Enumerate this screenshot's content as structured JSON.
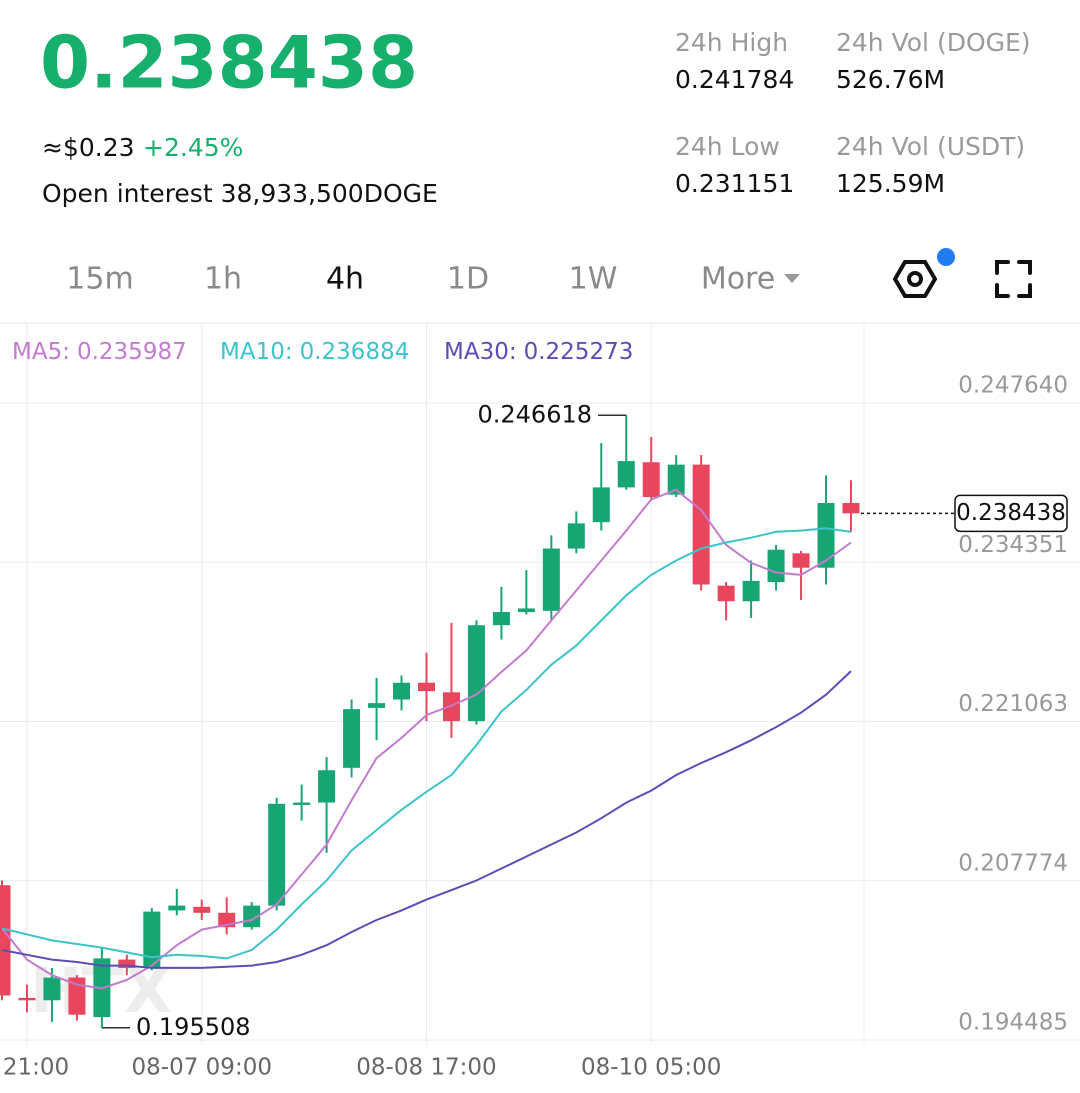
{
  "header": {
    "price": "0.238438",
    "usd": "≈$0.23",
    "change": "+2.45%",
    "open_interest": "Open interest 38,933,500DOGE",
    "stats": [
      {
        "label": "24h High",
        "value": "0.241784"
      },
      {
        "label": "24h Vol (DOGE)",
        "value": "526.76M"
      },
      {
        "label": "24h Low",
        "value": "0.231151"
      },
      {
        "label": "24h Vol (USDT)",
        "value": "125.59M"
      }
    ]
  },
  "tabs": {
    "items": [
      "15m",
      "1h",
      "4h",
      "1D",
      "1W",
      "More"
    ],
    "selected": 2
  },
  "chart_data": {
    "type": "candlestick",
    "watermark": "HTX",
    "categories": [
      null,
      "21:00",
      null,
      null,
      null,
      null,
      null,
      null,
      "08-07 09:00",
      null,
      null,
      null,
      null,
      null,
      null,
      null,
      null,
      "08-08 17:00",
      null,
      null,
      null,
      null,
      null,
      null,
      null,
      null,
      "08-10 05:00",
      null,
      null,
      null,
      null,
      null,
      null,
      null,
      null
    ],
    "open": [
      0.2074,
      0.198,
      0.1978,
      0.1997,
      0.1964,
      0.2012,
      0.2005,
      0.2053,
      0.2056,
      0.2051,
      0.2039,
      0.2057,
      0.2141,
      0.2143,
      0.2172,
      0.2222,
      0.2229,
      0.2243,
      0.2235,
      0.2211,
      0.2291,
      0.2302,
      0.2303,
      0.2355,
      0.2377,
      0.2406,
      0.2427,
      0.24,
      0.2425,
      0.2324,
      0.2311,
      0.2327,
      0.2351,
      0.2339,
      0.2393
    ],
    "high": [
      0.2078,
      0.1991,
      0.2005,
      0.1999,
      0.2022,
      0.2016,
      0.2055,
      0.2071,
      0.2062,
      0.2064,
      0.206,
      0.2147,
      0.2158,
      0.2181,
      0.2229,
      0.2247,
      0.2249,
      0.2268,
      0.2293,
      0.2295,
      0.2323,
      0.2337,
      0.2366,
      0.2386,
      0.2443,
      0.246618,
      0.2448,
      0.2433,
      0.2433,
      0.2327,
      0.2345,
      0.2358,
      0.2353,
      0.2416,
      0.2412
    ],
    "low": [
      0.1978,
      0.1968,
      0.196,
      0.1961,
      0.195508,
      0.1999,
      0.2003,
      0.2049,
      0.2045,
      0.2033,
      0.2037,
      0.2053,
      0.2128,
      0.2101,
      0.2164,
      0.2195,
      0.222,
      0.2211,
      0.2197,
      0.2208,
      0.2279,
      0.23,
      0.2295,
      0.2351,
      0.237,
      0.2404,
      0.2395,
      0.2398,
      0.232,
      0.2295,
      0.2297,
      0.232,
      0.2312,
      0.2325,
      0.2369
    ],
    "close": [
      0.1982,
      0.1978,
      0.1997,
      0.1966,
      0.2013,
      0.2005,
      0.2052,
      0.2057,
      0.2051,
      0.2039,
      0.2057,
      0.2142,
      0.2143,
      0.217,
      0.2221,
      0.2226,
      0.2243,
      0.2236,
      0.2211,
      0.2291,
      0.2302,
      0.2305,
      0.2355,
      0.2376,
      0.2406,
      0.2428,
      0.2398,
      0.2425,
      0.2325,
      0.2311,
      0.2328,
      0.2354,
      0.2339,
      0.2393,
      0.238438
    ],
    "up_color": "#17a673",
    "down_color": "#e9465d",
    "series": [
      {
        "name": "MA5:",
        "latest": 0.235987,
        "color": "#c27bcf",
        "values": [
          0.2038,
          0.2012,
          0.1999,
          0.1991,
          0.1988,
          0.1995,
          0.2007,
          0.2024,
          0.2037,
          0.2041,
          0.2045,
          0.2058,
          0.2083,
          0.2108,
          0.2145,
          0.218,
          0.2197,
          0.2216,
          0.2224,
          0.2233,
          0.2252,
          0.227,
          0.2295,
          0.232,
          0.2345,
          0.237,
          0.2396,
          0.2404,
          0.2387,
          0.2358,
          0.2343,
          0.2335,
          0.2333,
          0.2345,
          0.236
        ]
      },
      {
        "name": "MA10:",
        "latest": 0.236884,
        "color": "#3cc3cb",
        "values": [
          0.2038,
          0.2033,
          0.2028,
          0.2025,
          0.2022,
          0.2018,
          0.2014,
          0.2016,
          0.2015,
          0.2013,
          0.202,
          0.2037,
          0.2058,
          0.2078,
          0.2103,
          0.212,
          0.2137,
          0.2152,
          0.2166,
          0.2191,
          0.2219,
          0.2237,
          0.2258,
          0.2274,
          0.2295,
          0.2316,
          0.2333,
          0.2345,
          0.2355,
          0.236,
          0.2364,
          0.2369,
          0.237,
          0.2372,
          0.236884
        ]
      },
      {
        "name": "MA30:",
        "latest": 0.225273,
        "color": "#5b4db8",
        "values": [
          0.202,
          0.2016,
          0.2012,
          0.201,
          0.2007,
          0.2007,
          0.2005,
          0.2005,
          0.2005,
          0.2006,
          0.2007,
          0.201,
          0.2016,
          0.2024,
          0.2035,
          0.2045,
          0.2053,
          0.2062,
          0.207,
          0.2078,
          0.2088,
          0.2098,
          0.2108,
          0.2118,
          0.213,
          0.2143,
          0.2153,
          0.2166,
          0.2176,
          0.2185,
          0.2195,
          0.2206,
          0.2218,
          0.2233,
          0.225273
        ]
      }
    ],
    "ylim": [
      0.19407,
      0.25432
    ],
    "yticks": [
      0.194485,
      0.207774,
      0.221063,
      0.234351,
      {
        "value": 0.24764,
        "label": "0.247640"
      }
    ],
    "grid": true,
    "max_label": 0.246618,
    "min_label": 0.195508,
    "current_price": 0.238438
  }
}
